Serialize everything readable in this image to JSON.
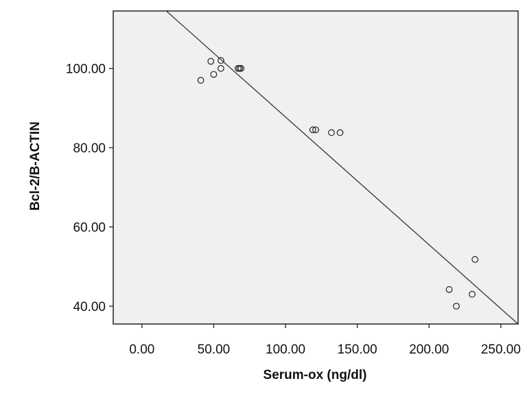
{
  "chart_data": {
    "type": "scatter",
    "title": "",
    "xlabel": "Serum-ox (ng/dl)",
    "ylabel": "Bcl-2/B-ACTIN",
    "xlim": [
      -20,
      262
    ],
    "ylim": [
      35.5,
      114.5
    ],
    "xticks": [
      0,
      50,
      100,
      150,
      200,
      250
    ],
    "yticks": [
      40,
      60,
      80,
      100
    ],
    "xtick_labels": [
      "0.00",
      "50.00",
      "100.00",
      "150.00",
      "200.00",
      "250.00"
    ],
    "ytick_labels": [
      "40.00",
      "60.00",
      "80.00",
      "100.00"
    ],
    "grid": false,
    "plot_background": "#f0f0f0",
    "marker_color": "#222222",
    "line_color": "#333333",
    "points": [
      {
        "x": 41,
        "y": 97.0
      },
      {
        "x": 48,
        "y": 101.8
      },
      {
        "x": 50,
        "y": 98.5
      },
      {
        "x": 55,
        "y": 102.0
      },
      {
        "x": 55,
        "y": 100.0
      },
      {
        "x": 67,
        "y": 100.0
      },
      {
        "x": 68,
        "y": 100.0
      },
      {
        "x": 69,
        "y": 100.0
      },
      {
        "x": 119,
        "y": 84.5
      },
      {
        "x": 121,
        "y": 84.5
      },
      {
        "x": 132,
        "y": 83.8
      },
      {
        "x": 138,
        "y": 83.8
      },
      {
        "x": 214,
        "y": 44.2
      },
      {
        "x": 219,
        "y": 40.0
      },
      {
        "x": 230,
        "y": 43.0
      },
      {
        "x": 232,
        "y": 51.8
      }
    ],
    "fit_line": {
      "x": [
        17,
        262
      ],
      "y": [
        114.5,
        35.5
      ]
    }
  }
}
